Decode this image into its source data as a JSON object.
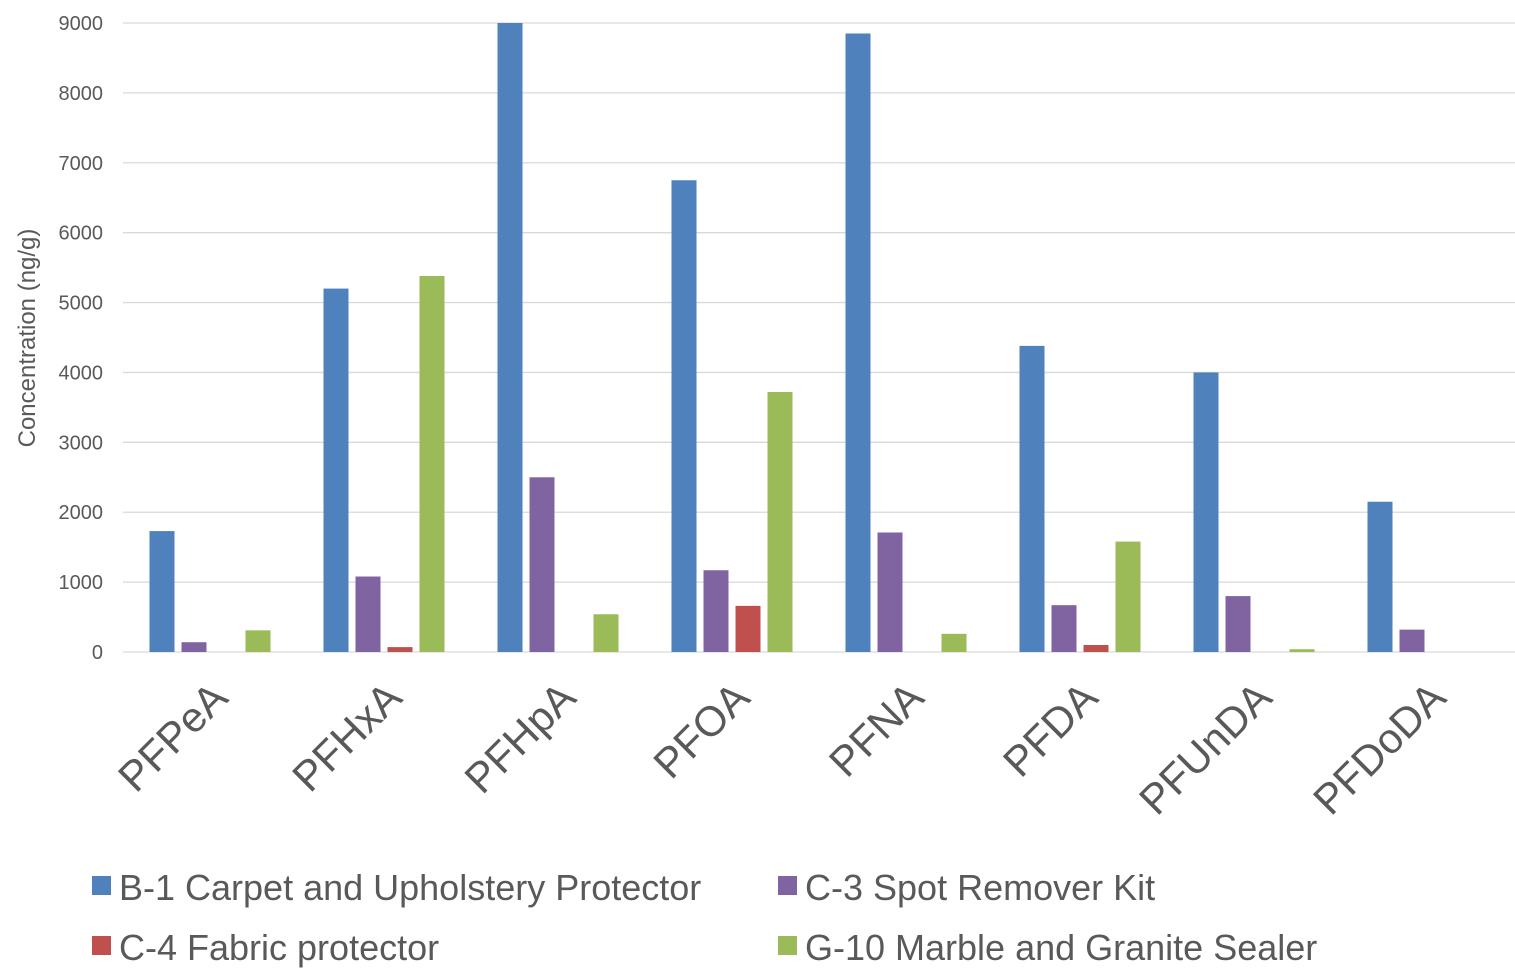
{
  "chart_data": {
    "type": "bar",
    "ylabel": "Concentration (ng/g)",
    "ylim": [
      0,
      9000
    ],
    "yticks": [
      0,
      1000,
      2000,
      3000,
      4000,
      5000,
      6000,
      7000,
      8000,
      9000
    ],
    "grid": true,
    "legend_position": "bottom",
    "categories": [
      "PFPeA",
      "PFHxA",
      "PFHpA",
      "PFOA",
      "PFNA",
      "PFDA",
      "PFUnDA",
      "PFDoDA"
    ],
    "series": [
      {
        "name": "B-1 Carpet and Upholstery Protector",
        "color": "#4f81bd",
        "values": [
          1730,
          5200,
          9000,
          6750,
          8850,
          4380,
          4000,
          2150
        ]
      },
      {
        "name": "C-3 Spot Remover Kit",
        "color": "#8064a2",
        "values": [
          140,
          1080,
          2500,
          1170,
          1710,
          670,
          800,
          320
        ]
      },
      {
        "name": "C-4 Fabric protector",
        "color": "#c0504d",
        "values": [
          0,
          70,
          0,
          660,
          0,
          100,
          0,
          0
        ]
      },
      {
        "name": "G-10 Marble and Granite Sealer",
        "color": "#9bbb59",
        "values": [
          310,
          5380,
          540,
          3720,
          260,
          1580,
          40,
          0
        ]
      }
    ]
  }
}
